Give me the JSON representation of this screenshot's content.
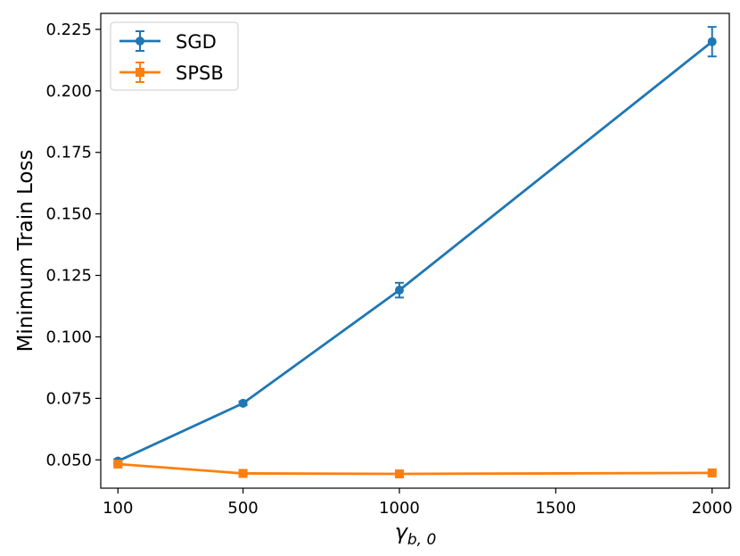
{
  "chart_data": {
    "type": "line",
    "xlabel_base": "γ",
    "xlabel_sub": "b, 0",
    "ylabel": "Minimum Train Loss",
    "x": [
      100,
      500,
      1000,
      2000
    ],
    "xticks": [
      100,
      500,
      1000,
      1500,
      2000
    ],
    "xtick_labels": [
      "100",
      "500",
      "1000",
      "1500",
      "2000"
    ],
    "yticks": [
      0.05,
      0.075,
      0.1,
      0.125,
      0.15,
      0.175,
      0.2,
      0.225
    ],
    "ytick_labels": [
      "0.050",
      "0.075",
      "0.100",
      "0.125",
      "0.150",
      "0.175",
      "0.200",
      "0.225"
    ],
    "xlim": [
      45,
      2055
    ],
    "ylim": [
      0.0385,
      0.2315
    ],
    "grid": false,
    "legend_position": "top-left",
    "series": [
      {
        "name": "SGD",
        "color": "#1f77b4",
        "marker": "circle",
        "values": [
          0.0495,
          0.073,
          0.119,
          0.22
        ],
        "errors": [
          0.0008,
          0.0008,
          0.003,
          0.006
        ]
      },
      {
        "name": "SPSB",
        "color": "#ff7f0e",
        "marker": "square",
        "values": [
          0.0483,
          0.0445,
          0.0443,
          0.0447
        ],
        "errors": [
          0.0005,
          0.0004,
          0.0004,
          0.0004
        ]
      }
    ]
  }
}
